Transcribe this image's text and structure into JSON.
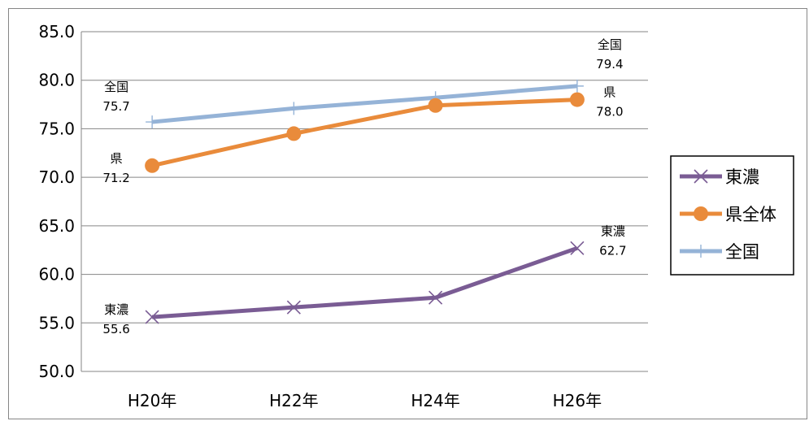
{
  "chart_data": {
    "type": "line",
    "title": "",
    "xlabel": "",
    "ylabel": "",
    "categories": [
      "H20年",
      "H22年",
      "H24年",
      "H26年"
    ],
    "ylim": [
      50,
      85
    ],
    "yticks": [
      "50.0",
      "55.0",
      "60.0",
      "65.0",
      "70.0",
      "75.0",
      "80.0",
      "85.0"
    ],
    "grid": true,
    "legend_position": "right",
    "series": [
      {
        "name": "東濃",
        "color": "#7A5C94",
        "marker": "x",
        "values": [
          55.6,
          56.6,
          57.6,
          62.7
        ],
        "labels": [
          {
            "index": 0,
            "name": "東濃",
            "value": "55.6"
          },
          {
            "index": 3,
            "name": "東濃",
            "value": "62.7"
          }
        ]
      },
      {
        "name": "県全体",
        "color": "#E98B3B",
        "marker": "circle",
        "values": [
          71.2,
          74.5,
          77.4,
          78.0
        ],
        "labels": [
          {
            "index": 0,
            "name": "県",
            "value": "71.2"
          },
          {
            "index": 3,
            "name": "県",
            "value": "78.0"
          }
        ]
      },
      {
        "name": "全国",
        "color": "#95B3D7",
        "marker": "plus",
        "values": [
          75.7,
          77.1,
          78.2,
          79.4
        ],
        "labels": [
          {
            "index": 0,
            "name": "全国",
            "value": "75.7"
          },
          {
            "index": 3,
            "name": "全国",
            "value": "79.4"
          }
        ]
      }
    ]
  }
}
